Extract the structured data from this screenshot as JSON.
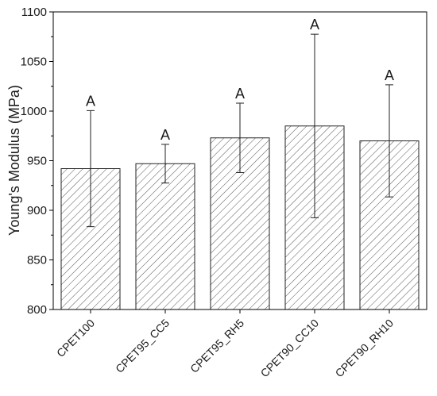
{
  "chart_data": {
    "type": "bar",
    "title": "",
    "xlabel": "",
    "ylabel": "Young's Modulus (MPa)",
    "ylim": [
      800,
      1100
    ],
    "yticks": [
      800,
      850,
      900,
      950,
      1000,
      1050,
      1100
    ],
    "categories": [
      "CPET100",
      "CPET95_CC5",
      "CPET95_RH5",
      "CPET90_CC10",
      "CPET90_RH10"
    ],
    "values": [
      942,
      947,
      973,
      985,
      970
    ],
    "error": [
      58.5,
      19.5,
      35,
      92.5,
      56.5
    ],
    "significance_labels": [
      "A",
      "A",
      "A",
      "A",
      "A"
    ],
    "bar_fill": "hatched",
    "bar_color": "#ffffff",
    "hatch_color": "#555555",
    "grid": false,
    "legend": "none"
  }
}
